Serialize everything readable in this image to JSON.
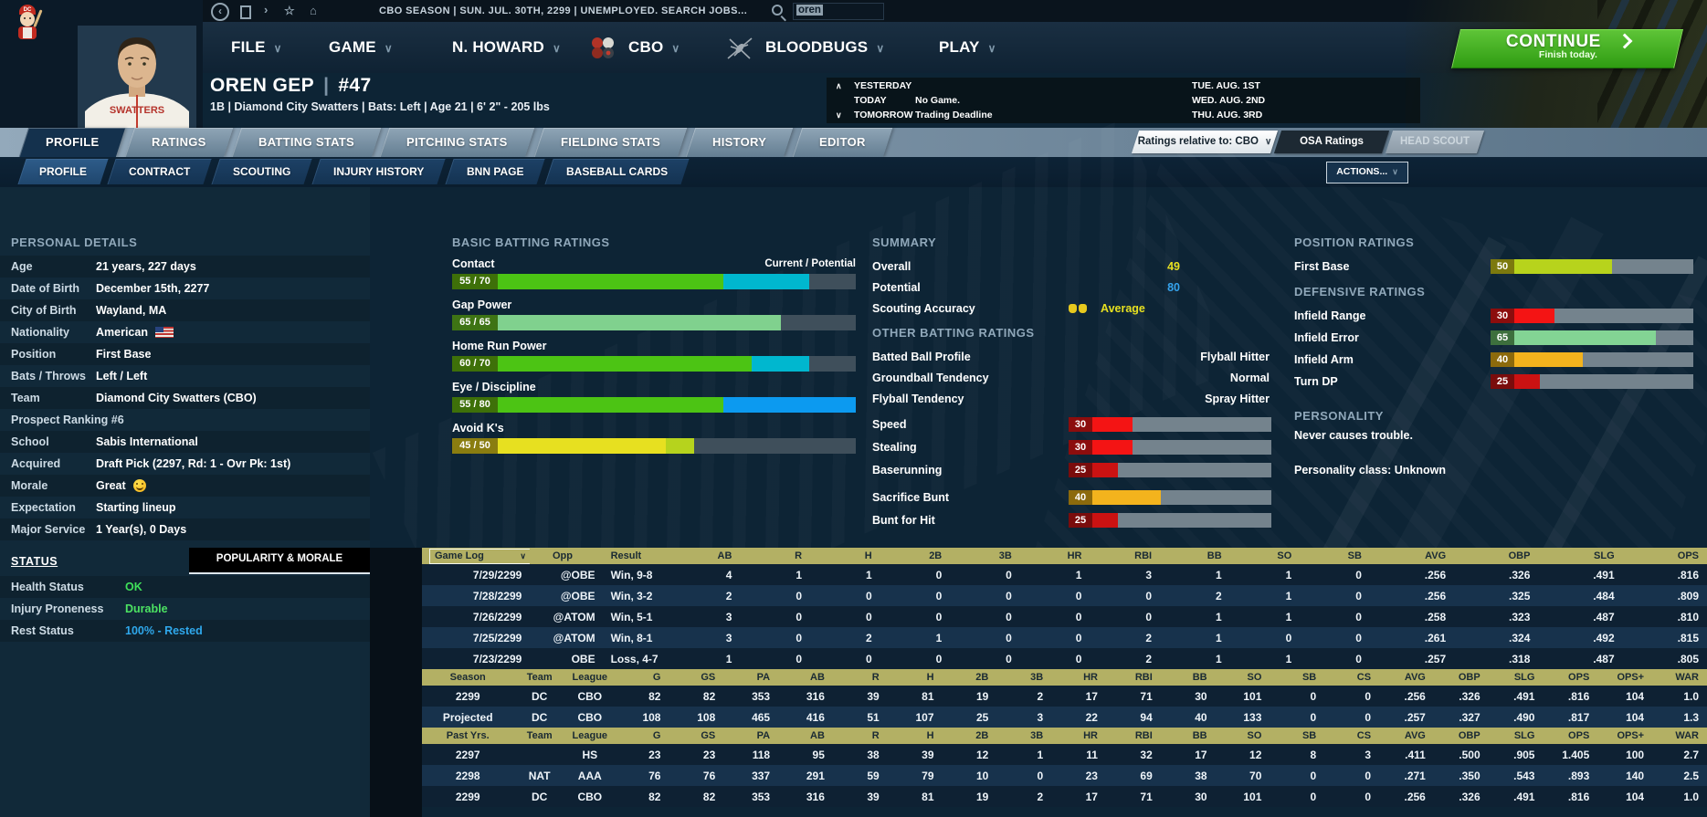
{
  "topbar": {
    "breadcrumb": "CBO SEASON  |  SUN. JUL. 30TH, 2299  |  UNEMPLOYED. SEARCH JOBS...",
    "search_value": "oren"
  },
  "menubar": {
    "items": [
      {
        "label": "FILE"
      },
      {
        "label": "GAME"
      },
      {
        "label": "N. HOWARD"
      },
      {
        "label": "CBO"
      },
      {
        "label": "BLOODBUGS"
      },
      {
        "label": "PLAY"
      }
    ],
    "continue_label": "CONTINUE",
    "continue_sub": "Finish today."
  },
  "player": {
    "name": "OREN GEP",
    "number": "#47",
    "info_line": "1B | Diamond City Swatters  |  Bats: Left  |  Age 21  |  6' 2\" - 205 lbs",
    "jersey_text": "SWATTERS"
  },
  "schedule": {
    "rows": [
      {
        "label": "YESTERDAY",
        "detail": "",
        "date": "TUE. AUG. 1ST"
      },
      {
        "label": "TODAY",
        "detail": "No Game.",
        "date": "WED. AUG. 2ND"
      },
      {
        "label": "TOMORROW",
        "detail": "Trading Deadline",
        "date": "THU. AUG. 3RD"
      }
    ]
  },
  "tabs_main": {
    "items": [
      "PROFILE",
      "RATINGS",
      "BATTING STATS",
      "PITCHING STATS",
      "FIELDING STATS",
      "HISTORY",
      "EDITOR"
    ],
    "active": "PROFILE"
  },
  "ratings_controls": {
    "relative_label": "Ratings relative to: CBO",
    "osa_label": "OSA Ratings",
    "head_scout_label": "HEAD SCOUT"
  },
  "tabs_sub": {
    "items": [
      "PROFILE",
      "CONTRACT",
      "SCOUTING",
      "INJURY HISTORY",
      "BNN PAGE",
      "BASEBALL CARDS"
    ],
    "active": "PROFILE"
  },
  "actions_label": "ACTIONS...",
  "personal": {
    "title": "PERSONAL DETAILS",
    "rows": [
      {
        "label": "Age",
        "value": "21 years, 227 days"
      },
      {
        "label": "Date of Birth",
        "value": "December 15th, 2277"
      },
      {
        "label": "City of Birth",
        "value": "Wayland, MA"
      },
      {
        "label": "Nationality",
        "value": "American",
        "icon": "us-flag-icon"
      },
      {
        "label": "Position",
        "value": "First Base"
      },
      {
        "label": "Bats / Throws",
        "value": "Left / Left"
      },
      {
        "label": "Team",
        "value": "Diamond City Swatters (CBO)"
      },
      {
        "label": "Prospect Ranking #6",
        "value": "",
        "full": true
      },
      {
        "label": "School",
        "value": "Sabis International"
      },
      {
        "label": "Acquired",
        "value": "Draft Pick (2297, Rd: 1 - Ovr Pk: 1st)"
      },
      {
        "label": "Morale",
        "value": "Great",
        "icon": "smiley-icon"
      },
      {
        "label": "Expectation",
        "value": "Starting lineup"
      },
      {
        "label": "Major Service",
        "value": "1 Year(s), 0 Days"
      }
    ]
  },
  "status": {
    "title": "STATUS",
    "tab_label": "POPULARITY & MORALE",
    "rows": [
      {
        "label": "Health Status",
        "value": "OK",
        "color": "#3fe05a"
      },
      {
        "label": "Injury Proneness",
        "value": "Durable",
        "color": "#4ce362"
      },
      {
        "label": "Rest Status",
        "value": "100% - Rested",
        "color": "#2fa8ec"
      }
    ]
  },
  "basic_ratings": {
    "title": "BASIC BATTING RATINGS",
    "scale_note": "Current / Potential",
    "bars": [
      {
        "label": "Contact",
        "display": "55 / 70",
        "current": 55,
        "potential": 70,
        "current_color": "#4cc414",
        "potential_color": "#00b7cf",
        "box_color": "#3e7009"
      },
      {
        "label": "Gap Power",
        "display": "65 / 65",
        "current": 65,
        "potential": 65,
        "current_color": "#80d18e",
        "potential_color": "#80d18e",
        "box_color": "#3e7414"
      },
      {
        "label": "Home Run Power",
        "display": "60 / 70",
        "current": 60,
        "potential": 70,
        "current_color": "#4cc414",
        "potential_color": "#00b7cf",
        "box_color": "#3e7009"
      },
      {
        "label": "Eye / Discipline",
        "display": "55 / 80",
        "current": 55,
        "potential": 80,
        "current_color": "#4cc414",
        "potential_color": "#0c9af0",
        "box_color": "#3e7009"
      },
      {
        "label": "Avoid K's",
        "display": "45 / 50",
        "current": 45,
        "potential": 50,
        "current_color": "#e7e020",
        "potential_color": "#b6d31d",
        "box_color": "#8a7d10"
      }
    ]
  },
  "summary": {
    "title": "SUMMARY",
    "rows": [
      {
        "label": "Overall",
        "value": "49",
        "color": "#e7e020"
      },
      {
        "label": "Potential",
        "value": "80",
        "color": "#35a3ec"
      }
    ],
    "scouting_label": "Scouting Accuracy",
    "scouting_value": "Average",
    "scouting_color": "#e7e020"
  },
  "other_batting": {
    "title": "OTHER BATTING RATINGS",
    "rows": [
      {
        "label": "Batted Ball Profile",
        "value": "Flyball Hitter"
      },
      {
        "label": "Groundball Tendency",
        "value": "Normal"
      },
      {
        "label": "Flyball Tendency",
        "value": "Spray Hitter"
      }
    ],
    "bars": [
      {
        "label": "Speed",
        "value": 30,
        "color": "#f41414",
        "box": "#8c0d0d"
      },
      {
        "label": "Stealing",
        "value": 30,
        "color": "#f41414",
        "box": "#8c0d0d"
      },
      {
        "label": "Baserunning",
        "value": 25,
        "color": "#cb1212",
        "box": "#7a0c0c"
      },
      {
        "label": "Sacrifice Bunt",
        "value": 40,
        "color": "#f3b31d",
        "box": "#8c6a0c"
      },
      {
        "label": "Bunt for Hit",
        "value": 25,
        "color": "#cb1212",
        "box": "#7a0c0c"
      }
    ]
  },
  "position_ratings": {
    "title": "POSITION RATINGS",
    "bars": [
      {
        "label": "First Base",
        "value": 50,
        "color": "#b7d31c",
        "box": "#7c790e"
      }
    ]
  },
  "defensive_ratings": {
    "title": "DEFENSIVE RATINGS",
    "bars": [
      {
        "label": "Infield Range",
        "value": 30,
        "color": "#f41414",
        "box": "#8c0d0d"
      },
      {
        "label": "Infield Error",
        "value": 65,
        "color": "#83d494",
        "box": "#3d6f3d"
      },
      {
        "label": "Infield Arm",
        "value": 40,
        "color": "#f3b31d",
        "box": "#8c6a0c"
      },
      {
        "label": "Turn DP",
        "value": 25,
        "color": "#cb1212",
        "box": "#7a0c0c"
      }
    ]
  },
  "personality": {
    "title": "PERSONALITY",
    "line1": "Never causes trouble.",
    "line2": "Personality class: Unknown"
  },
  "gamelog": {
    "selector": "Game Log",
    "columns": [
      "",
      "Opp",
      "Result",
      "AB",
      "R",
      "H",
      "2B",
      "3B",
      "HR",
      "RBI",
      "BB",
      "SO",
      "SB",
      "AVG",
      "OBP",
      "SLG",
      "OPS"
    ],
    "rows": [
      [
        "7/29/2299",
        "@OBE",
        "Win, 9-8",
        "4",
        "1",
        "1",
        "0",
        "0",
        "1",
        "3",
        "1",
        "1",
        "0",
        ".256",
        ".326",
        ".491",
        ".816"
      ],
      [
        "7/28/2299",
        "@OBE",
        "Win, 3-2",
        "2",
        "0",
        "0",
        "0",
        "0",
        "0",
        "0",
        "2",
        "1",
        "0",
        ".256",
        ".325",
        ".484",
        ".809"
      ],
      [
        "7/26/2299",
        "@ATOM",
        "Win, 5-1",
        "3",
        "0",
        "0",
        "0",
        "0",
        "0",
        "0",
        "1",
        "1",
        "0",
        ".258",
        ".323",
        ".487",
        ".810"
      ],
      [
        "7/25/2299",
        "@ATOM",
        "Win, 8-1",
        "3",
        "0",
        "2",
        "1",
        "0",
        "0",
        "2",
        "1",
        "0",
        "0",
        ".261",
        ".324",
        ".492",
        ".815"
      ],
      [
        "7/23/2299",
        "OBE",
        "Loss, 4-7",
        "1",
        "0",
        "0",
        "0",
        "0",
        "0",
        "2",
        "1",
        "1",
        "0",
        ".257",
        ".318",
        ".487",
        ".805"
      ]
    ]
  },
  "season_table": {
    "columns": [
      "Season",
      "Team",
      "League",
      "G",
      "GS",
      "PA",
      "AB",
      "R",
      "H",
      "2B",
      "3B",
      "HR",
      "RBI",
      "BB",
      "SO",
      "SB",
      "CS",
      "AVG",
      "OBP",
      "SLG",
      "OPS",
      "OPS+",
      "WAR"
    ],
    "rows": [
      [
        "2299",
        "DC",
        "CBO",
        "82",
        "82",
        "353",
        "316",
        "39",
        "81",
        "19",
        "2",
        "17",
        "71",
        "30",
        "101",
        "0",
        "0",
        ".256",
        ".326",
        ".491",
        ".816",
        "104",
        "1.0"
      ],
      [
        "Projected",
        "DC",
        "CBO",
        "108",
        "108",
        "465",
        "416",
        "51",
        "107",
        "25",
        "3",
        "22",
        "94",
        "40",
        "133",
        "0",
        "0",
        ".257",
        ".327",
        ".490",
        ".817",
        "104",
        "1.3"
      ]
    ]
  },
  "past_table": {
    "columns": [
      "Past Yrs.",
      "Team",
      "League",
      "G",
      "GS",
      "PA",
      "AB",
      "R",
      "H",
      "2B",
      "3B",
      "HR",
      "RBI",
      "BB",
      "SO",
      "SB",
      "CS",
      "AVG",
      "OBP",
      "SLG",
      "OPS",
      "OPS+",
      "WAR"
    ],
    "rows": [
      [
        "2297",
        "",
        "HS",
        "23",
        "23",
        "118",
        "95",
        "38",
        "39",
        "12",
        "1",
        "11",
        "32",
        "17",
        "12",
        "8",
        "3",
        ".411",
        ".500",
        ".905",
        "1.405",
        "100",
        "2.7"
      ],
      [
        "2298",
        "NAT",
        "AAA",
        "76",
        "76",
        "337",
        "291",
        "59",
        "79",
        "10",
        "0",
        "23",
        "69",
        "38",
        "70",
        "0",
        "0",
        ".271",
        ".350",
        ".543",
        ".893",
        "140",
        "2.5"
      ],
      [
        "2299",
        "DC",
        "CBO",
        "82",
        "82",
        "353",
        "316",
        "39",
        "81",
        "19",
        "2",
        "17",
        "71",
        "30",
        "101",
        "0",
        "0",
        ".256",
        ".326",
        ".491",
        ".816",
        "104",
        "1.0"
      ]
    ]
  }
}
